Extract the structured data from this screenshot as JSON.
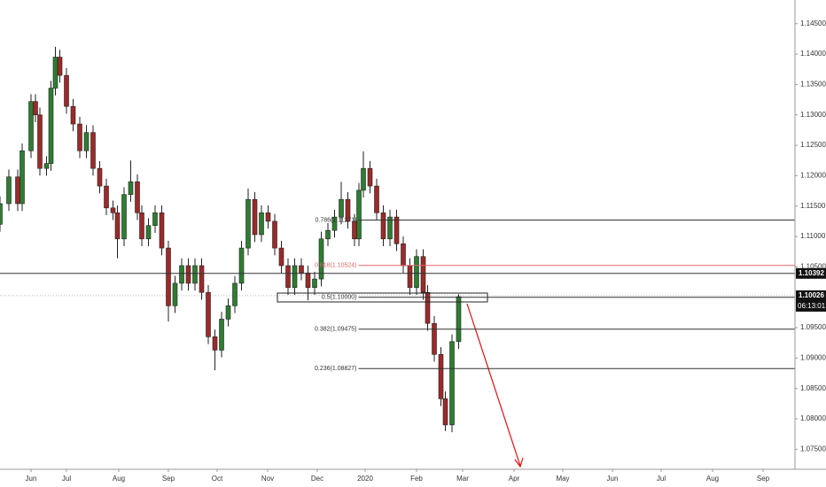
{
  "chart_data": {
    "type": "candlestick",
    "up_color": "#2e7d32",
    "down_color": "#9c2a2a",
    "xlim": [
      0,
      358.8
    ],
    "ylim": [
      1.0717,
      1.1489
    ],
    "xticks": [
      {
        "value": 14,
        "label": "Jun"
      },
      {
        "value": 30,
        "label": "Jul"
      },
      {
        "value": 53.6,
        "label": "Aug"
      },
      {
        "value": 76,
        "label": "Sep"
      },
      {
        "value": 98,
        "label": "Oct"
      },
      {
        "value": 120.8,
        "label": "Nov"
      },
      {
        "value": 143.2,
        "label": "Dec"
      },
      {
        "value": 164.8,
        "label": "2020"
      },
      {
        "value": 188,
        "label": "Feb"
      },
      {
        "value": 208.8,
        "label": "Mar"
      },
      {
        "value": 232,
        "label": "Apr"
      },
      {
        "value": 254,
        "label": "May"
      },
      {
        "value": 276.4,
        "label": "Jun"
      },
      {
        "value": 298.4,
        "label": "Jul"
      },
      {
        "value": 321.6,
        "label": "Aug"
      },
      {
        "value": 344.4,
        "label": "Sep"
      }
    ],
    "yticks": [
      {
        "value": 1.145,
        "label": "1.14500"
      },
      {
        "value": 1.14,
        "label": "1.14000"
      },
      {
        "value": 1.135,
        "label": "1.13500"
      },
      {
        "value": 1.13,
        "label": "1.13000"
      },
      {
        "value": 1.125,
        "label": "1.12500"
      },
      {
        "value": 1.12,
        "label": "1.12000"
      },
      {
        "value": 1.115,
        "label": "1.11500"
      },
      {
        "value": 1.11,
        "label": "1.11000"
      },
      {
        "value": 1.105,
        "label": "1.10500"
      },
      {
        "value": 1.095,
        "label": "1.09500"
      },
      {
        "value": 1.09,
        "label": "1.09000"
      },
      {
        "value": 1.085,
        "label": "1.08500"
      },
      {
        "value": 1.08,
        "label": "1.08000"
      },
      {
        "value": 1.075,
        "label": "1.07500"
      }
    ],
    "x": [
      0,
      4,
      8,
      10,
      14,
      16,
      18,
      21,
      23,
      25,
      27,
      30,
      33,
      36,
      39,
      42,
      45,
      48,
      51,
      53,
      56,
      59,
      62,
      64,
      67,
      70,
      73,
      76,
      79,
      82,
      85,
      88,
      91,
      94,
      97,
      100,
      103,
      106,
      109,
      112,
      115,
      118,
      121,
      124,
      127,
      130,
      133,
      136,
      139,
      142,
      145,
      148,
      151,
      154,
      157,
      160,
      162,
      164,
      167,
      170,
      173,
      176,
      179,
      182,
      185,
      188,
      191,
      193,
      196,
      199,
      201,
      204,
      207
    ],
    "open": [
      1.112,
      1.1154,
      1.1198,
      1.1154,
      1.1241,
      1.1322,
      1.13,
      1.1212,
      1.122,
      1.1344,
      1.1395,
      1.1365,
      1.1314,
      1.1285,
      1.1241,
      1.1271,
      1.1212,
      1.1183,
      1.1147,
      1.1139,
      1.1096,
      1.1169,
      1.119,
      1.1139,
      1.1096,
      1.1118,
      1.1139,
      1.1081,
      1.0986,
      1.1023,
      1.1052,
      1.1023,
      1.1052,
      1.1008,
      1.0935,
      1.0913,
      1.0964,
      1.0986,
      1.1023,
      1.1081,
      1.1161,
      1.1103,
      1.1139,
      1.1125,
      1.1081,
      1.1052,
      1.1016,
      1.1052,
      1.104,
      1.1016,
      1.103,
      1.1096,
      1.111,
      1.1132,
      1.1161,
      1.1125,
      1.1096,
      1.1176,
      1.1212,
      1.1183,
      1.1139,
      1.1096,
      1.1132,
      1.1088,
      1.1052,
      1.1016,
      1.1067,
      1.1008,
      1.0957,
      1.0906,
      1.0833,
      1.079,
      1.0927
    ],
    "high": [
      1.1166,
      1.121,
      1.121,
      1.1253,
      1.1334,
      1.1334,
      1.1312,
      1.1232,
      1.1356,
      1.1412,
      1.1407,
      1.1377,
      1.1326,
      1.1297,
      1.1283,
      1.1283,
      1.1224,
      1.1195,
      1.1159,
      1.1151,
      1.1181,
      1.1225,
      1.1202,
      1.1151,
      1.113,
      1.1151,
      1.1151,
      1.1093,
      1.1035,
      1.1064,
      1.1064,
      1.1064,
      1.1064,
      1.102,
      1.0947,
      1.0976,
      1.0998,
      1.1035,
      1.1093,
      1.1179,
      1.1173,
      1.1151,
      1.1151,
      1.1137,
      1.1093,
      1.1064,
      1.1064,
      1.1064,
      1.1052,
      1.1042,
      1.1108,
      1.1122,
      1.1144,
      1.119,
      1.1173,
      1.1137,
      1.1188,
      1.124,
      1.1224,
      1.1195,
      1.1151,
      1.1144,
      1.1144,
      1.11,
      1.1064,
      1.1079,
      1.1079,
      1.102,
      1.0969,
      1.0918,
      1.0845,
      1.0939,
      1.1005
    ],
    "low": [
      1.1108,
      1.1142,
      1.1142,
      1.1142,
      1.1229,
      1.1288,
      1.12,
      1.12,
      1.1208,
      1.1332,
      1.1353,
      1.1302,
      1.1273,
      1.1229,
      1.1229,
      1.12,
      1.1171,
      1.1135,
      1.1127,
      1.1064,
      1.1084,
      1.1157,
      1.1127,
      1.1084,
      1.1084,
      1.1106,
      1.1069,
      1.096,
      1.0974,
      1.1011,
      1.1011,
      1.1011,
      1.0996,
      1.0923,
      1.088,
      1.0901,
      1.0952,
      1.0974,
      1.1011,
      1.1069,
      1.1091,
      1.1091,
      1.1113,
      1.1069,
      1.104,
      1.1004,
      1.1004,
      1.1028,
      1.0995,
      1.1004,
      1.1018,
      1.1084,
      1.1098,
      1.112,
      1.1113,
      1.1084,
      1.1084,
      1.1164,
      1.1171,
      1.1127,
      1.1084,
      1.1084,
      1.1076,
      1.104,
      1.1004,
      1.1004,
      1.0996,
      1.0945,
      1.0894,
      1.0821,
      1.078,
      1.0778,
      1.0915
    ],
    "close": [
      1.1154,
      1.1198,
      1.1154,
      1.1241,
      1.1322,
      1.13,
      1.1212,
      1.122,
      1.1344,
      1.1395,
      1.1365,
      1.1314,
      1.1285,
      1.1241,
      1.1271,
      1.1212,
      1.1183,
      1.1147,
      1.1139,
      1.1096,
      1.1169,
      1.119,
      1.1139,
      1.1096,
      1.1118,
      1.1139,
      1.1081,
      1.0986,
      1.1023,
      1.1052,
      1.1023,
      1.1052,
      1.1008,
      1.0935,
      1.0913,
      1.0964,
      1.0986,
      1.1023,
      1.1081,
      1.1161,
      1.1103,
      1.1139,
      1.1125,
      1.1081,
      1.1052,
      1.1016,
      1.1052,
      1.104,
      1.1016,
      1.103,
      1.1096,
      1.111,
      1.1132,
      1.1161,
      1.1125,
      1.1096,
      1.1176,
      1.1212,
      1.1183,
      1.1139,
      1.1096,
      1.1132,
      1.1088,
      1.1052,
      1.1016,
      1.1067,
      1.1008,
      1.0957,
      1.0906,
      1.0833,
      1.079,
      1.0927,
      1.1001
    ],
    "hline": {
      "value": 1.10392,
      "label": "1.10392"
    },
    "last_price": {
      "value": 1.10026,
      "label": "1.10026",
      "countdown": "06:13:01"
    },
    "fib_start": 161,
    "fib_levels": [
      {
        "value": 1.11271,
        "label": "0.786(1.11271)",
        "color": "#333333"
      },
      {
        "value": 1.10524,
        "label": "0.618(1.10524)",
        "color": "#e06666"
      },
      {
        "value": 1.1,
        "label": "0.5(1.10000)",
        "color": "#333333"
      },
      {
        "value": 1.09475,
        "label": "0.382(1.09475)",
        "color": "#333333"
      },
      {
        "value": 1.08827,
        "label": "0.236(1.08827)",
        "color": "#333333"
      }
    ]
  }
}
